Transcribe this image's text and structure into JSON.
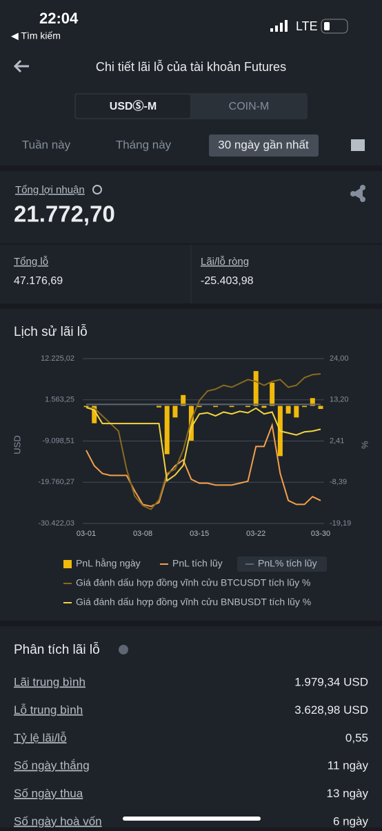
{
  "status": {
    "time": "22:04",
    "back": "◀ Tìm kiếm",
    "network": "LTE"
  },
  "header": {
    "title": "Chi tiết lãi lỗ của tài khoản Futures"
  },
  "tabs": [
    "USDⓈ-M",
    "COIN-M"
  ],
  "periods": [
    "Tuần này",
    "Tháng này",
    "30 ngày gần nhất"
  ],
  "summary": {
    "total_label": "Tổng lợi nhuận",
    "total_value": "21.772,70",
    "loss_label": "Tổng lỗ",
    "loss_value": "47.176,69",
    "net_label": "Lãi/lỗ ròng",
    "net_value": "-25.403,98"
  },
  "chart_section": {
    "title": "Lịch sử lãi lỗ"
  },
  "chart_data": {
    "type": "combo",
    "ylabel": "USD",
    "y2label": "%",
    "categories": [
      "03-01",
      null,
      null,
      null,
      null,
      null,
      null,
      "03-08",
      null,
      null,
      null,
      null,
      null,
      null,
      "03-15",
      null,
      null,
      null,
      null,
      null,
      null,
      "03-22",
      null,
      null,
      null,
      null,
      null,
      null,
      null,
      "03-30"
    ],
    "ylim": [
      -30422.03,
      12225.02
    ],
    "yticks": [
      {
        "value": 12225.02,
        "label": "12.225,02"
      },
      {
        "value": 1563.25,
        "label": "1.563,25"
      },
      {
        "value": -9098.51,
        "label": "-9.098,51"
      },
      {
        "value": -19760.27,
        "label": "-19.760,27"
      },
      {
        "value": -30422.03,
        "label": "-30.422,03"
      }
    ],
    "y2lim": [
      -19.19,
      24
    ],
    "y2ticks": [
      {
        "value": 24,
        "label": "24,00"
      },
      {
        "value": 13.2,
        "label": "13,20"
      },
      {
        "value": 2.41,
        "label": "2,41"
      },
      {
        "value": -8.39,
        "label": "-8,39"
      },
      {
        "value": -19.19,
        "label": "-19,19"
      }
    ],
    "grid": true,
    "series": [
      {
        "name": "PnL hằng ngày",
        "type": "bar",
        "color": "#f0b90b",
        "values": [
          -300,
          -4500,
          0,
          0,
          0,
          0,
          0,
          0,
          0,
          -400,
          -12500,
          -3000,
          2800,
          -9000,
          -300,
          0,
          -300,
          0,
          -300,
          0,
          -300,
          9000,
          -500,
          6000,
          -13000,
          -2000,
          -3000,
          -300,
          2000,
          -800
        ]
      },
      {
        "name": "PnL tích lũy",
        "type": "line",
        "color": "#f5a04a",
        "values": [
          -11500,
          -15500,
          -17500,
          -18000,
          -18000,
          -18000,
          -22000,
          -25500,
          -26000,
          -25000,
          -18000,
          -15500,
          -14000,
          -19000,
          -20000,
          -20000,
          -20500,
          -20500,
          -20500,
          -20000,
          -19500,
          -10500,
          -10500,
          -5000,
          -17500,
          -24500,
          -25500,
          -25500,
          -23500,
          -24500
        ]
      },
      {
        "name": "PnL% tích lũy",
        "type": "line",
        "axis": "y2",
        "color": "#5e6673",
        "values": [
          12,
          12,
          12,
          12,
          12,
          12,
          12,
          12,
          12,
          12,
          12,
          12,
          12,
          12,
          12,
          12,
          12,
          12,
          12,
          12,
          12,
          12,
          12,
          12,
          12,
          12,
          12,
          12,
          12,
          12
        ]
      },
      {
        "name": "Giá đánh dấu hợp đồng vĩnh cửu BTCUSDT tích lũy %",
        "type": "line",
        "axis": "y2",
        "color": "#8a6a1f",
        "values": [
          11.2,
          11,
          9,
          7,
          5,
          -5,
          -12,
          -14.5,
          -15.5,
          -13,
          -6,
          -5,
          0,
          8,
          13,
          15.5,
          16,
          17,
          16.5,
          17.5,
          18.5,
          18,
          17,
          18,
          18.5,
          16.5,
          17,
          19,
          19.8,
          20
        ]
      },
      {
        "name": "Giá đánh dấu hợp đồng vĩnh cửu BNBUSDT tích lũy %",
        "type": "line",
        "axis": "y2",
        "color": "#f5d442",
        "values": [
          11.2,
          10.5,
          7,
          7,
          7,
          7,
          7,
          7,
          7,
          7,
          -8,
          -6.5,
          -4,
          6,
          9.5,
          9.8,
          9,
          10,
          9.5,
          10.2,
          9.8,
          11,
          9.5,
          10,
          5,
          4.5,
          4,
          4.8,
          5,
          5.5
        ]
      }
    ]
  },
  "analysis": {
    "title": "Phân tích lãi lỗ",
    "rows": [
      [
        "Lãi trung bình",
        "1.979,34 USD"
      ],
      [
        "Lỗ trung bình",
        "3.628,98 USD"
      ],
      [
        "Tỷ lệ lãi/lỗ",
        "0,55"
      ],
      [
        "Số ngày thắng",
        "11 ngày"
      ],
      [
        "Số ngày thua",
        "13 ngày"
      ],
      [
        "Số ngày hoà vốn",
        "6 ngày"
      ]
    ]
  }
}
